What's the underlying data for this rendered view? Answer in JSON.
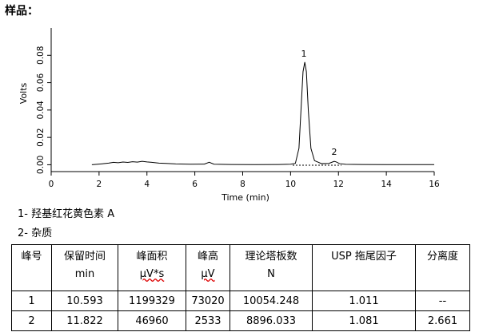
{
  "header": {
    "title": "样品："
  },
  "chart_data": {
    "type": "line",
    "y_label": "Volts",
    "x_label": "Time (min)",
    "xlim": [
      0,
      16
    ],
    "xticks": [
      0,
      2,
      4,
      6,
      8,
      10,
      12,
      14,
      16
    ],
    "ylim": [
      -0.005,
      0.1
    ],
    "yticks": [
      {
        "value": 0,
        "label": "0.00"
      },
      {
        "value": 0.02,
        "label": "0.02"
      },
      {
        "value": 0.04,
        "label": "0.04"
      },
      {
        "value": 0.06,
        "label": "0.06"
      },
      {
        "value": 0.08,
        "label": "0.08"
      }
    ],
    "annotations": [
      "1",
      "2"
    ],
    "series": [
      {
        "color": "#000000",
        "x": [
          1.7,
          1.9,
          2.2,
          2.4,
          2.6,
          2.8,
          3.0,
          3.2,
          3.4,
          3.6,
          3.8,
          4.0,
          4.2,
          4.5,
          4.8,
          5.2,
          5.8,
          6.4,
          6.6,
          6.8,
          7.5,
          8.5,
          9.5,
          10.0,
          10.2,
          10.35,
          10.45,
          10.52,
          10.593,
          10.66,
          10.74,
          10.85,
          11.0,
          11.3,
          11.6,
          11.75,
          11.822,
          11.9,
          12.05,
          12.3,
          13,
          14,
          15,
          16
        ],
        "values": [
          0,
          0.0003,
          0.0008,
          0.0012,
          0.0018,
          0.0015,
          0.002,
          0.0017,
          0.0022,
          0.0019,
          0.0025,
          0.0021,
          0.0018,
          0.0012,
          0.001,
          0.0006,
          0.0004,
          0.0005,
          0.0018,
          0.0004,
          0.0002,
          0.0001,
          0.0002,
          0.0004,
          0.001,
          0.012,
          0.045,
          0.068,
          0.075,
          0.068,
          0.04,
          0.012,
          0.003,
          0.0008,
          0.001,
          0.002,
          0.0025,
          0.0021,
          0.0008,
          0.0003,
          0.0002,
          0.0001,
          0.0001,
          0.0001
        ]
      }
    ]
  },
  "notes": [
    "1-  羟基红花黄色素 A",
    "2-  杂质"
  ],
  "table": {
    "header": [
      [
        "峰号"
      ],
      [
        "保留时间",
        "min"
      ],
      [
        "峰面积",
        "μV*s"
      ],
      [
        "峰高",
        "μV"
      ],
      [
        "理论塔板数",
        "N"
      ],
      [
        "USP 拖尾因子"
      ],
      [
        "分离度"
      ]
    ],
    "rows": [
      [
        "1",
        "10.593",
        "1199329",
        "73020",
        "10054.248",
        "1.011",
        "--"
      ],
      [
        "2",
        "11.822",
        "46960",
        "2533",
        "8896.033",
        "1.081",
        "2.661"
      ]
    ]
  }
}
